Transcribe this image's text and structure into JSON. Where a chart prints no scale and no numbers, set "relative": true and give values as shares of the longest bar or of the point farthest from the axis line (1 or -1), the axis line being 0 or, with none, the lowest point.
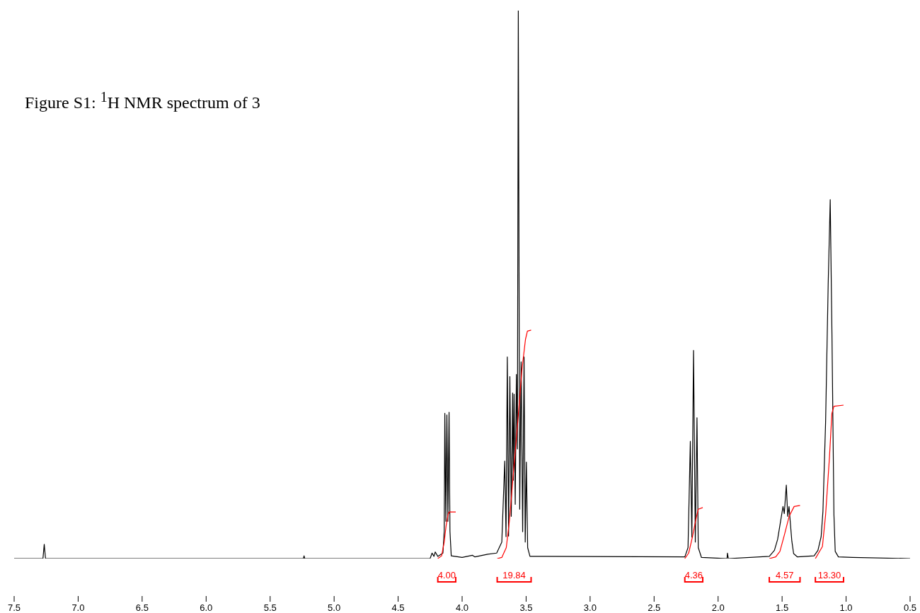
{
  "chart_data": {
    "type": "line",
    "title": "Figure S1: $^{1}$H NMR spectrum of 3",
    "relative": true,
    "xlim": [
      7.5,
      0.5
    ],
    "xticks": [
      7.5,
      {
        "value": 7,
        "label": "7.0"
      },
      6.5,
      {
        "value": 6,
        "label": "6.0"
      },
      5.5,
      {
        "value": 5,
        "label": "5.0"
      },
      4.5,
      {
        "value": 4,
        "label": "4.0"
      },
      3.5,
      {
        "value": 3,
        "label": "3.0"
      },
      2.5,
      {
        "value": 2,
        "label": "2.0"
      },
      1.5,
      {
        "value": 1,
        "label": "1.0"
      },
      0.5
    ],
    "series": [
      {
        "color": "#000000",
        "x": [
          7.5,
          7.275,
          7.265,
          7.255,
          5.24,
          5.235,
          5.23,
          4.25,
          4.235,
          4.22,
          4.21,
          4.19,
          4.15,
          4.14,
          4.135,
          4.127,
          4.119,
          4.111,
          4.102,
          4.095,
          4.085,
          4.0,
          3.92,
          3.9,
          3.8,
          3.73,
          3.69,
          3.667,
          3.657,
          3.647,
          3.637,
          3.627,
          3.616,
          3.605,
          3.6,
          3.594,
          3.585,
          3.576,
          3.568,
          3.561,
          3.55,
          3.539,
          3.527,
          3.516,
          3.507,
          3.498,
          3.488,
          3.47,
          3.35,
          2.26,
          2.235,
          2.217,
          2.205,
          2.192,
          2.178,
          2.165,
          2.155,
          2.13,
          1.93,
          1.927,
          1.92,
          1.6,
          1.56,
          1.535,
          1.493,
          1.483,
          1.467,
          1.456,
          1.446,
          1.424,
          1.41,
          1.38,
          1.25,
          1.22,
          1.195,
          1.181,
          1.16,
          1.14,
          1.124,
          1.11,
          1.095,
          1.085,
          1.06,
          0.95,
          0.5
        ],
        "values": [
          0,
          0,
          0.026,
          0,
          0,
          0.005,
          0,
          0,
          0.01,
          0.004,
          0.012,
          0.004,
          0.01,
          0.05,
          0.265,
          0.068,
          0.262,
          0.068,
          0.267,
          0.05,
          0.005,
          0.002,
          0.006,
          0.003,
          0.008,
          0.01,
          0.03,
          0.178,
          0.04,
          0.368,
          0.041,
          0.332,
          0.077,
          0.302,
          0.143,
          0.3,
          0.099,
          0.336,
          0.2,
          1.0,
          0.09,
          0.359,
          0.049,
          0.368,
          0.03,
          0.176,
          0.02,
          0.004,
          0.004,
          0.003,
          0.02,
          0.214,
          0.039,
          0.38,
          0.03,
          0.257,
          0.02,
          0.002,
          0,
          0.01,
          0,
          0.004,
          0.015,
          0.035,
          0.095,
          0.082,
          0.134,
          0.077,
          0.095,
          0.032,
          0.009,
          0.003,
          0.005,
          0.015,
          0.04,
          0.086,
          0.25,
          0.5,
          0.655,
          0.4,
          0.08,
          0.013,
          0.003,
          0.002,
          0
        ]
      },
      {
        "color": "#ff0000",
        "x": [
          4.19,
          4.16,
          4.14,
          4.125,
          4.11,
          4.1,
          4.05
        ],
        "values": [
          0,
          0.005,
          0.03,
          0.06,
          0.08,
          0.085,
          0.085
        ]
      },
      {
        "color": "#ff0000",
        "x": [
          3.726,
          3.69,
          3.655,
          3.63,
          3.598,
          3.565,
          3.533,
          3.505,
          3.49,
          3.461
        ],
        "values": [
          0,
          0.002,
          0.02,
          0.07,
          0.16,
          0.25,
          0.344,
          0.4,
          0.415,
          0.417
        ]
      },
      {
        "color": "#ff0000",
        "x": [
          2.26,
          2.23,
          2.2,
          2.175,
          2.155,
          2.12
        ],
        "values": [
          0,
          0.01,
          0.04,
          0.07,
          0.09,
          0.093
        ]
      },
      {
        "color": "#ff0000",
        "x": [
          1.6,
          1.55,
          1.517,
          1.48,
          1.445,
          1.406,
          1.36
        ],
        "values": [
          0,
          0.003,
          0.013,
          0.045,
          0.077,
          0.095,
          0.097
        ]
      },
      {
        "color": "#ff0000",
        "x": [
          1.24,
          1.185,
          1.16,
          1.13,
          1.111,
          1.095,
          1.02
        ],
        "values": [
          0,
          0.022,
          0.08,
          0.185,
          0.265,
          0.278,
          0.28
        ]
      }
    ],
    "annotations": [
      "4.00",
      "19.84",
      "4.36",
      "4.57",
      "13.30"
    ]
  }
}
